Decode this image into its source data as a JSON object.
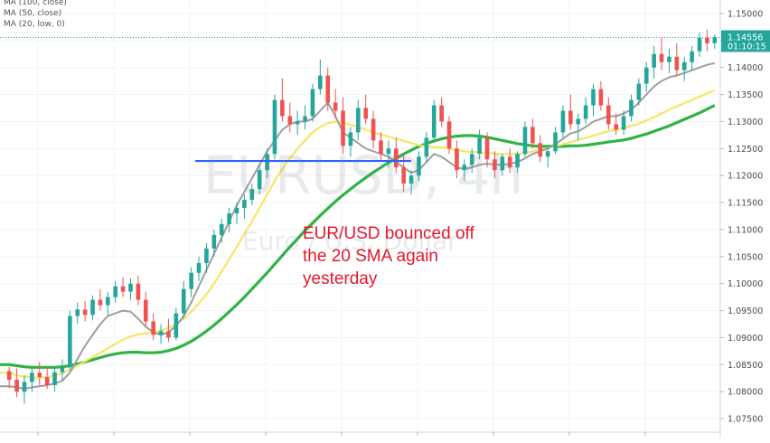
{
  "chart_data": {
    "type": "candlestick",
    "title": "",
    "watermark_symbol": "EURUSD, 4h",
    "watermark_name": "Euro / U.S. Dollar",
    "legend": [
      "MA (100, close)",
      "MA (50, close)",
      "MA (20, low, 0)"
    ],
    "y_axis": {
      "ylim": [
        1.0725,
        1.1525
      ],
      "ticks": [
        "1.15000",
        "1.14500",
        "1.14000",
        "1.13500",
        "1.13000",
        "1.12500",
        "1.12000",
        "1.11500",
        "1.11000",
        "1.10500",
        "1.10000",
        "1.09500",
        "1.09000",
        "1.08500",
        "1.08000",
        "1.07500"
      ]
    },
    "last_price": "1.14556",
    "countdown": "01:10:15",
    "colors": {
      "up": "#26a69a",
      "down": "#ef5350",
      "ma100": "#2fb344",
      "ma50": "#f5e663",
      "ma20": "#9e9e9e",
      "support_line": "#2962ff",
      "annotation": "#e3182d",
      "price_label": "#26a69a"
    },
    "support_level": 1.1227,
    "ohlc": [
      [
        1.0838,
        1.0846,
        1.0806,
        1.0822
      ],
      [
        1.0822,
        1.0843,
        1.079,
        1.08
      ],
      [
        1.08,
        1.083,
        1.0778,
        1.0818
      ],
      [
        1.0818,
        1.0845,
        1.08,
        1.0835
      ],
      [
        1.0835,
        1.0855,
        1.0812,
        1.0827
      ],
      [
        1.0827,
        1.0844,
        1.0805,
        1.0812
      ],
      [
        1.0812,
        1.0846,
        1.08,
        1.0836
      ],
      [
        1.0836,
        1.086,
        1.082,
        1.0845
      ],
      [
        1.0845,
        1.095,
        1.084,
        1.094
      ],
      [
        1.094,
        1.0965,
        1.0925,
        1.0952
      ],
      [
        1.0952,
        1.0968,
        1.093,
        1.0942
      ],
      [
        1.0942,
        1.0978,
        1.0932,
        1.097
      ],
      [
        1.097,
        1.099,
        1.095,
        1.096
      ],
      [
        1.096,
        1.0985,
        1.0942,
        1.0975
      ],
      [
        1.0975,
        1.1005,
        1.0965,
        1.0995
      ],
      [
        1.0995,
        1.1012,
        1.0975,
        1.0985
      ],
      [
        1.0985,
        1.101,
        1.097,
        1.1
      ],
      [
        1.1,
        1.1015,
        1.096,
        1.097
      ],
      [
        1.097,
        1.0985,
        1.092,
        1.093
      ],
      [
        1.093,
        1.0945,
        1.0895,
        1.0905
      ],
      [
        1.0905,
        1.0925,
        1.0888,
        1.0912
      ],
      [
        1.0912,
        1.0935,
        1.0892,
        1.09
      ],
      [
        1.09,
        1.0955,
        1.0895,
        1.0945
      ],
      [
        1.0945,
        1.1005,
        1.0935,
        1.099
      ],
      [
        1.099,
        1.103,
        1.0975,
        1.102
      ],
      [
        1.102,
        1.105,
        1.1005,
        1.1038
      ],
      [
        1.1038,
        1.1075,
        1.102,
        1.1065
      ],
      [
        1.1065,
        1.11,
        1.105,
        1.109
      ],
      [
        1.109,
        1.112,
        1.1075,
        1.111
      ],
      [
        1.111,
        1.114,
        1.1095,
        1.113
      ],
      [
        1.113,
        1.115,
        1.111,
        1.114
      ],
      [
        1.114,
        1.1165,
        1.112,
        1.1155
      ],
      [
        1.1155,
        1.1185,
        1.1145,
        1.1175
      ],
      [
        1.1175,
        1.122,
        1.1165,
        1.121
      ],
      [
        1.121,
        1.125,
        1.1195,
        1.124
      ],
      [
        1.124,
        1.135,
        1.123,
        1.134
      ],
      [
        1.134,
        1.138,
        1.13,
        1.131
      ],
      [
        1.131,
        1.1335,
        1.128,
        1.1295
      ],
      [
        1.1295,
        1.132,
        1.1275,
        1.13
      ],
      [
        1.13,
        1.133,
        1.1285,
        1.131
      ],
      [
        1.131,
        1.137,
        1.13,
        1.136
      ],
      [
        1.136,
        1.1415,
        1.135,
        1.1385
      ],
      [
        1.1385,
        1.14,
        1.132,
        1.1335
      ],
      [
        1.1335,
        1.136,
        1.1305,
        1.132
      ],
      [
        1.132,
        1.1345,
        1.124,
        1.1255
      ],
      [
        1.1255,
        1.129,
        1.1235,
        1.128
      ],
      [
        1.128,
        1.134,
        1.1265,
        1.1325
      ],
      [
        1.1325,
        1.135,
        1.1295,
        1.1305
      ],
      [
        1.1305,
        1.132,
        1.125,
        1.1265
      ],
      [
        1.1265,
        1.128,
        1.1225,
        1.124
      ],
      [
        1.124,
        1.1265,
        1.1215,
        1.125
      ],
      [
        1.125,
        1.127,
        1.1205,
        1.1215
      ],
      [
        1.1215,
        1.124,
        1.117,
        1.1185
      ],
      [
        1.1185,
        1.121,
        1.1165,
        1.12
      ],
      [
        1.12,
        1.1245,
        1.119,
        1.1235
      ],
      [
        1.1235,
        1.128,
        1.1225,
        1.127
      ],
      [
        1.127,
        1.134,
        1.126,
        1.133
      ],
      [
        1.133,
        1.1345,
        1.129,
        1.13
      ],
      [
        1.13,
        1.131,
        1.124,
        1.125
      ],
      [
        1.125,
        1.1265,
        1.1195,
        1.121
      ],
      [
        1.121,
        1.123,
        1.119,
        1.122
      ],
      [
        1.122,
        1.125,
        1.1205,
        1.124
      ],
      [
        1.124,
        1.1285,
        1.123,
        1.127
      ],
      [
        1.127,
        1.128,
        1.1215,
        1.123
      ],
      [
        1.123,
        1.1245,
        1.1195,
        1.121
      ],
      [
        1.121,
        1.124,
        1.12,
        1.1235
      ],
      [
        1.1235,
        1.125,
        1.1205,
        1.1215
      ],
      [
        1.1215,
        1.1245,
        1.1205,
        1.124
      ],
      [
        1.124,
        1.13,
        1.1235,
        1.129
      ],
      [
        1.129,
        1.1305,
        1.125,
        1.126
      ],
      [
        1.126,
        1.1275,
        1.1225,
        1.1235
      ],
      [
        1.1235,
        1.1255,
        1.1215,
        1.1245
      ],
      [
        1.1245,
        1.129,
        1.124,
        1.128
      ],
      [
        1.128,
        1.133,
        1.127,
        1.132
      ],
      [
        1.132,
        1.135,
        1.1285,
        1.1295
      ],
      [
        1.1295,
        1.1315,
        1.1265,
        1.1305
      ],
      [
        1.1305,
        1.1345,
        1.1295,
        1.133
      ],
      [
        1.133,
        1.137,
        1.131,
        1.136
      ],
      [
        1.136,
        1.1375,
        1.132,
        1.133
      ],
      [
        1.133,
        1.1345,
        1.1285,
        1.1295
      ],
      [
        1.1295,
        1.1315,
        1.1275,
        1.1285
      ],
      [
        1.1285,
        1.132,
        1.1275,
        1.131
      ],
      [
        1.131,
        1.135,
        1.13,
        1.134
      ],
      [
        1.134,
        1.138,
        1.133,
        1.137
      ],
      [
        1.137,
        1.141,
        1.1355,
        1.14
      ],
      [
        1.14,
        1.144,
        1.138,
        1.1425
      ],
      [
        1.1425,
        1.1455,
        1.1395,
        1.141
      ],
      [
        1.141,
        1.1435,
        1.139,
        1.142
      ],
      [
        1.142,
        1.1445,
        1.1385,
        1.1395
      ],
      [
        1.1395,
        1.142,
        1.1375,
        1.141
      ],
      [
        1.141,
        1.144,
        1.1395,
        1.143
      ],
      [
        1.143,
        1.1465,
        1.142,
        1.1455
      ],
      [
        1.1455,
        1.147,
        1.143,
        1.1445
      ],
      [
        1.1445,
        1.1462,
        1.1435,
        1.1456
      ]
    ],
    "ma20": [
      1.081,
      1.0808,
      1.0805,
      1.0808,
      1.081,
      1.0812,
      1.0815,
      1.082,
      1.0835,
      1.086,
      1.0885,
      1.0905,
      1.0925,
      1.094,
      1.0945,
      1.095,
      1.0948,
      1.0935,
      1.092,
      1.091,
      1.0905,
      1.091,
      1.0922,
      1.094,
      1.0965,
      1.0995,
      1.1025,
      1.1055,
      1.1085,
      1.1115,
      1.1145,
      1.117,
      1.1195,
      1.122,
      1.1245,
      1.1265,
      1.1285,
      1.1295,
      1.13,
      1.13,
      1.1305,
      1.132,
      1.1335,
      1.131,
      1.128,
      1.127,
      1.126,
      1.125,
      1.1245,
      1.124,
      1.1235,
      1.1225,
      1.1215,
      1.1205,
      1.121,
      1.1225,
      1.124,
      1.1235,
      1.1225,
      1.1215,
      1.1212,
      1.1215,
      1.122,
      1.1222,
      1.122,
      1.122,
      1.1222,
      1.1225,
      1.1232,
      1.124,
      1.1245,
      1.125,
      1.1258,
      1.1268,
      1.1278,
      1.1282,
      1.129,
      1.13,
      1.1305,
      1.131,
      1.131,
      1.1315,
      1.1322,
      1.1335,
      1.135,
      1.1365,
      1.1375,
      1.1382,
      1.1385,
      1.139,
      1.1395,
      1.14,
      1.1405,
      1.1408
    ],
    "ma50": [
      1.0835,
      1.083,
      1.0828,
      1.0826,
      1.0826,
      1.0827,
      1.083,
      1.0834,
      1.084,
      1.0848,
      1.0856,
      1.0864,
      1.0872,
      1.088,
      1.0888,
      1.0896,
      1.0902,
      1.0906,
      1.0908,
      1.091,
      1.0913,
      1.0918,
      1.0925,
      1.0935,
      1.0948,
      1.0963,
      1.098,
      1.1,
      1.1022,
      1.1045,
      1.1068,
      1.1092,
      1.1115,
      1.114,
      1.1165,
      1.119,
      1.1212,
      1.1232,
      1.125,
      1.1265,
      1.128,
      1.129,
      1.1297,
      1.13,
      1.1298,
      1.1294,
      1.129,
      1.1285,
      1.128,
      1.1276,
      1.1272,
      1.1268,
      1.1264,
      1.126,
      1.1256,
      1.1254,
      1.1253,
      1.1252,
      1.125,
      1.1247,
      1.1245,
      1.1244,
      1.1243,
      1.1242,
      1.1241,
      1.124,
      1.124,
      1.124,
      1.1242,
      1.1245,
      1.1248,
      1.1251,
      1.1254,
      1.1258,
      1.1262,
      1.1266,
      1.127,
      1.1274,
      1.1278,
      1.1282,
      1.1285,
      1.1288,
      1.1292,
      1.1296,
      1.1302,
      1.1308,
      1.1315,
      1.1322,
      1.1328,
      1.1334,
      1.134,
      1.1346,
      1.1352,
      1.1358
    ],
    "ma100": [
      1.085,
      1.0848,
      1.0846,
      1.0845,
      1.0845,
      1.0845,
      1.0845,
      1.0846,
      1.0848,
      1.0851,
      1.0855,
      1.0859,
      1.0863,
      1.0867,
      1.087,
      1.0872,
      1.0873,
      1.0873,
      1.0872,
      1.0872,
      1.0873,
      1.0876,
      1.088,
      1.0886,
      1.0893,
      1.0902,
      1.0912,
      1.0923,
      1.0935,
      1.0948,
      1.0961,
      1.0975,
      1.099,
      1.1005,
      1.102,
      1.1036,
      1.1052,
      1.1068,
      1.1083,
      1.1098,
      1.1112,
      1.1126,
      1.1139,
      1.1152,
      1.1164,
      1.1175,
      1.1186,
      1.1196,
      1.1206,
      1.1215,
      1.1224,
      1.1232,
      1.124,
      1.1247,
      1.1254,
      1.1259,
      1.1264,
      1.1268,
      1.1271,
      1.1273,
      1.1274,
      1.1274,
      1.1273,
      1.1271,
      1.1268,
      1.1265,
      1.1262,
      1.1259,
      1.1257,
      1.1255,
      1.1254,
      1.1254,
      1.1254,
      1.1254,
      1.1255,
      1.1255,
      1.1256,
      1.1258,
      1.126,
      1.1262,
      1.1264,
      1.1266,
      1.1269,
      1.1273,
      1.1277,
      1.1282,
      1.1287,
      1.1292,
      1.1298,
      1.1304,
      1.131,
      1.1316,
      1.1323,
      1.133
    ]
  },
  "annotation_lines": [
    "EUR/USD bounced off",
    "the 20 SMA again",
    "yesterday"
  ]
}
